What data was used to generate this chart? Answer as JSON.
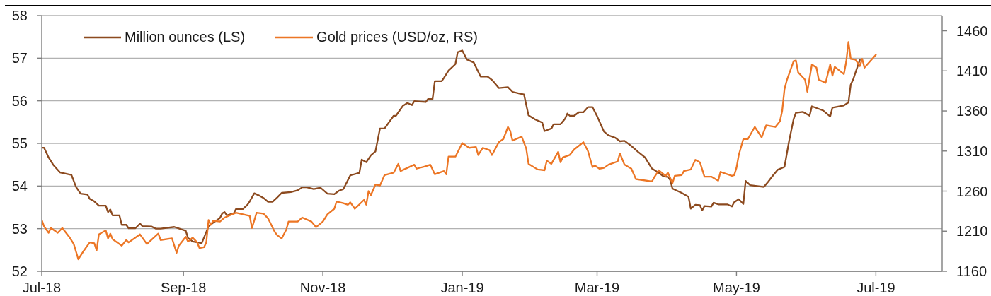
{
  "chart_data": {
    "type": "line",
    "series": [
      {
        "name": "Million ounces (LS)",
        "color": "#8c4a1f",
        "x": [
          "2018-07-01",
          "2018-07-02",
          "2018-07-04",
          "2018-07-06",
          "2018-07-09",
          "2018-07-14",
          "2018-07-16",
          "2018-07-18",
          "2018-07-21",
          "2018-07-22",
          "2018-07-24",
          "2018-07-26",
          "2018-07-29",
          "2018-07-30",
          "2018-07-31",
          "2018-08-01",
          "2018-08-04",
          "2018-08-05",
          "2018-08-07",
          "2018-08-08",
          "2018-08-11",
          "2018-08-13",
          "2018-08-14",
          "2018-08-18",
          "2018-08-20",
          "2018-08-22",
          "2018-08-28",
          "2018-09-02",
          "2018-09-03",
          "2018-09-05",
          "2018-09-09",
          "2018-09-11",
          "2018-09-12",
          "2018-09-14",
          "2018-09-17",
          "2018-09-18",
          "2018-09-19",
          "2018-09-20",
          "2018-09-23",
          "2018-09-24",
          "2018-09-27",
          "2018-09-29",
          "2018-09-30",
          "2018-10-02",
          "2018-10-04",
          "2018-10-06",
          "2018-10-08",
          "2018-10-10",
          "2018-10-12",
          "2018-10-14",
          "2018-10-18",
          "2018-10-21",
          "2018-10-23",
          "2018-10-25",
          "2018-10-28",
          "2018-10-31",
          "2018-11-03",
          "2018-11-06",
          "2018-11-08",
          "2018-11-10",
          "2018-11-13",
          "2018-11-17",
          "2018-11-18",
          "2018-11-20",
          "2018-11-22",
          "2018-11-24",
          "2018-11-26",
          "2018-11-28",
          "2018-12-02",
          "2018-12-03",
          "2018-12-06",
          "2018-12-08",
          "2018-12-10",
          "2018-12-11",
          "2018-12-16",
          "2018-12-17",
          "2018-12-19",
          "2018-12-20",
          "2018-12-23",
          "2018-12-24",
          "2018-12-26",
          "2018-12-29",
          "2018-12-30",
          "2019-01-01",
          "2019-01-03",
          "2019-01-06",
          "2019-01-07",
          "2019-01-09",
          "2019-01-12",
          "2019-01-14",
          "2019-01-17",
          "2019-01-21",
          "2019-01-23",
          "2019-01-26",
          "2019-01-28",
          "2019-01-30",
          "2019-02-02",
          "2019-02-05",
          "2019-02-06",
          "2019-02-09",
          "2019-02-10",
          "2019-02-13",
          "2019-02-15",
          "2019-02-16",
          "2019-02-17",
          "2019-02-19",
          "2019-02-21",
          "2019-02-23",
          "2019-02-25",
          "2019-02-27",
          "2019-03-01",
          "2019-03-04",
          "2019-03-06",
          "2019-03-09",
          "2019-03-11",
          "2019-03-13",
          "2019-03-16",
          "2019-03-19",
          "2019-03-22",
          "2019-03-25",
          "2019-03-28",
          "2019-03-30",
          "2019-04-01",
          "2019-04-02",
          "2019-04-03",
          "2019-04-07",
          "2019-04-10",
          "2019-04-11",
          "2019-04-13",
          "2019-04-15",
          "2019-04-16",
          "2019-04-17",
          "2019-04-20",
          "2019-04-21",
          "2019-04-23",
          "2019-04-27",
          "2019-04-29",
          "2019-04-30",
          "2019-05-02",
          "2019-05-04",
          "2019-05-05",
          "2019-05-07",
          "2019-05-13",
          "2019-05-15",
          "2019-05-17",
          "2019-05-19",
          "2019-05-22",
          "2019-05-24",
          "2019-05-26",
          "2019-05-27",
          "2019-05-30",
          "2019-06-02",
          "2019-06-03",
          "2019-06-08",
          "2019-06-11",
          "2019-06-12",
          "2019-06-17",
          "2019-06-19",
          "2019-06-20",
          "2019-06-21",
          "2019-06-22",
          "2019-06-24"
        ],
        "values": [
          54.9,
          54.9,
          54.67,
          54.5,
          54.32,
          54.26,
          53.98,
          53.82,
          53.8,
          53.7,
          53.64,
          53.54,
          53.54,
          53.39,
          53.45,
          53.31,
          53.31,
          53.09,
          53.09,
          53.01,
          53.01,
          53.12,
          53.06,
          53.05,
          53.0,
          53.0,
          53.04,
          52.95,
          52.78,
          52.7,
          52.66,
          52.92,
          53.06,
          53.14,
          53.25,
          53.36,
          53.39,
          53.31,
          53.36,
          53.46,
          53.46,
          53.56,
          53.64,
          53.83,
          53.78,
          53.72,
          53.63,
          53.63,
          53.73,
          53.84,
          53.86,
          53.9,
          53.97,
          53.97,
          53.93,
          53.96,
          53.82,
          53.81,
          53.89,
          53.93,
          54.25,
          54.31,
          54.62,
          54.56,
          54.72,
          54.81,
          55.35,
          55.35,
          55.65,
          55.65,
          55.88,
          55.95,
          55.9,
          55.99,
          55.97,
          56.04,
          56.04,
          56.46,
          56.46,
          56.54,
          56.71,
          56.86,
          57.14,
          57.18,
          56.97,
          56.9,
          56.79,
          56.57,
          56.57,
          56.49,
          56.3,
          56.32,
          56.21,
          56.17,
          56.15,
          55.66,
          55.56,
          55.49,
          55.29,
          55.35,
          55.45,
          55.45,
          55.58,
          55.7,
          55.65,
          55.65,
          55.73,
          55.73,
          55.85,
          55.85,
          55.64,
          55.28,
          55.19,
          55.13,
          55.05,
          55.06,
          54.94,
          54.8,
          54.67,
          54.41,
          54.31,
          54.23,
          54.21,
          54.14,
          53.94,
          53.84,
          53.75,
          53.47,
          53.56,
          53.55,
          53.43,
          53.53,
          53.52,
          53.61,
          53.57,
          53.57,
          53.52,
          53.62,
          53.69,
          53.58,
          54.12,
          54.02,
          53.98,
          54.11,
          54.25,
          54.38,
          54.45,
          55.05,
          55.57,
          55.72,
          55.74,
          55.65,
          55.87,
          55.77,
          55.63,
          55.84,
          55.89,
          55.96,
          56.38,
          56.49,
          56.65,
          56.96
        ]
      },
      {
        "name": "Gold prices (USD/oz, RS)",
        "color": "#ec7625",
        "axis": "y2",
        "x": [
          "2018-07-01",
          "2018-07-02",
          "2018-07-04",
          "2018-07-05",
          "2018-07-08",
          "2018-07-10",
          "2018-07-13",
          "2018-07-15",
          "2018-07-17",
          "2018-07-19",
          "2018-07-22",
          "2018-07-24",
          "2018-07-25",
          "2018-07-26",
          "2018-07-29",
          "2018-07-30",
          "2018-07-31",
          "2018-08-01",
          "2018-08-05",
          "2018-08-07",
          "2018-08-08",
          "2018-08-13",
          "2018-08-16",
          "2018-08-21",
          "2018-08-22",
          "2018-08-27",
          "2018-08-29",
          "2018-08-30",
          "2018-09-02",
          "2018-09-03",
          "2018-09-05",
          "2018-09-07",
          "2018-09-08",
          "2018-09-10",
          "2018-09-11",
          "2018-09-12",
          "2018-09-13",
          "2018-09-14",
          "2018-09-17",
          "2018-09-19",
          "2018-09-24",
          "2018-09-30",
          "2018-10-01",
          "2018-10-03",
          "2018-10-06",
          "2018-10-08",
          "2018-10-11",
          "2018-10-12",
          "2018-10-14",
          "2018-10-16",
          "2018-10-17",
          "2018-10-21",
          "2018-10-23",
          "2018-10-27",
          "2018-10-29",
          "2018-11-01",
          "2018-11-03",
          "2018-11-06",
          "2018-11-07",
          "2018-11-10",
          "2018-11-12",
          "2018-11-13",
          "2018-11-15",
          "2018-11-19",
          "2018-11-20",
          "2018-11-21",
          "2018-11-22",
          "2018-11-24",
          "2018-11-26",
          "2018-11-28",
          "2018-12-02",
          "2018-12-04",
          "2018-12-05",
          "2018-12-08",
          "2018-12-11",
          "2018-12-12",
          "2018-12-16",
          "2018-12-18",
          "2018-12-20",
          "2018-12-24",
          "2018-12-25",
          "2018-12-26",
          "2018-12-29",
          "2019-01-01",
          "2019-01-04",
          "2019-01-07",
          "2019-01-08",
          "2019-01-10",
          "2019-01-13",
          "2019-01-14",
          "2019-01-17",
          "2019-01-19",
          "2019-01-21",
          "2019-01-22",
          "2019-01-23",
          "2019-01-27",
          "2019-01-29",
          "2019-01-30",
          "2019-02-03",
          "2019-02-06",
          "2019-02-07",
          "2019-02-09",
          "2019-02-12",
          "2019-02-13",
          "2019-02-14",
          "2019-02-17",
          "2019-02-19",
          "2019-02-23",
          "2019-02-25",
          "2019-02-27",
          "2019-02-28",
          "2019-03-02",
          "2019-03-04",
          "2019-03-06",
          "2019-03-10",
          "2019-03-11",
          "2019-03-13",
          "2019-03-16",
          "2019-03-18",
          "2019-03-25",
          "2019-03-26",
          "2019-03-28",
          "2019-03-31",
          "2019-04-01",
          "2019-04-03",
          "2019-04-04",
          "2019-04-07",
          "2019-04-08",
          "2019-04-11",
          "2019-04-13",
          "2019-04-15",
          "2019-04-17",
          "2019-04-20",
          "2019-04-23",
          "2019-04-24",
          "2019-04-29",
          "2019-04-30",
          "2019-05-01",
          "2019-05-02",
          "2019-05-04",
          "2019-05-06",
          "2019-05-09",
          "2019-05-12",
          "2019-05-14",
          "2019-05-18",
          "2019-05-20",
          "2019-05-21",
          "2019-05-22",
          "2019-05-23",
          "2019-05-26",
          "2019-05-27",
          "2019-05-28",
          "2019-05-31",
          "2019-06-01",
          "2019-06-03",
          "2019-06-05",
          "2019-06-06",
          "2019-06-09",
          "2019-06-11",
          "2019-06-12",
          "2019-06-13",
          "2019-06-17",
          "2019-06-18",
          "2019-06-19",
          "2019-06-20",
          "2019-06-22",
          "2019-06-24",
          "2019-06-25",
          "2019-06-26",
          "2019-07-01"
        ],
        "values": [
          1224,
          1216,
          1208,
          1214,
          1208,
          1214,
          1203,
          1194,
          1175,
          1184,
          1196,
          1195,
          1186,
          1206,
          1211,
          1201,
          1207,
          1200,
          1192,
          1199,
          1196,
          1206,
          1194,
          1207,
          1199,
          1201,
          1183,
          1192,
          1203,
          1197,
          1202,
          1196,
          1189,
          1190,
          1196,
          1224,
          1218,
          1223,
          1222,
          1227,
          1233,
          1229,
          1214,
          1233,
          1232,
          1226,
          1209,
          1205,
          1201,
          1212,
          1222,
          1222,
          1227,
          1222,
          1215,
          1222,
          1231,
          1238,
          1247,
          1245,
          1243,
          1246,
          1238,
          1249,
          1243,
          1260,
          1255,
          1268,
          1267,
          1280,
          1283,
          1294,
          1285,
          1289,
          1293,
          1288,
          1291,
          1293,
          1281,
          1285,
          1281,
          1303,
          1303,
          1320,
          1314,
          1315,
          1305,
          1314,
          1311,
          1305,
          1321,
          1325,
          1340,
          1335,
          1323,
          1328,
          1313,
          1294,
          1287,
          1286,
          1298,
          1294,
          1309,
          1296,
          1302,
          1305,
          1312,
          1321,
          1310,
          1290,
          1292,
          1288,
          1289,
          1293,
          1297,
          1307,
          1293,
          1288,
          1275,
          1272,
          1277,
          1286,
          1279,
          1283,
          1270,
          1279,
          1280,
          1285,
          1287,
          1299,
          1296,
          1278,
          1278,
          1273,
          1284,
          1279,
          1280,
          1289,
          1305,
          1325,
          1325,
          1340,
          1327,
          1342,
          1340,
          1347,
          1360,
          1387,
          1398,
          1422,
          1423,
          1408,
          1399,
          1384,
          1418,
          1414,
          1399,
          1395,
          1418,
          1404,
          1415,
          1406,
          1421,
          1446,
          1425,
          1424,
          1416,
          1425,
          1414,
          1430
        ]
      }
    ],
    "xlim": [
      "2018-07-01",
      "2019-07-30"
    ],
    "xticks": [
      {
        "value": "2018-07-01",
        "label": "Jul-18"
      },
      {
        "value": "2018-09-01",
        "label": "Sep-18"
      },
      {
        "value": "2018-11-01",
        "label": "Nov-18"
      },
      {
        "value": "2019-01-01",
        "label": "Jan-19"
      },
      {
        "value": "2019-03-01",
        "label": "Mar-19"
      },
      {
        "value": "2019-05-01",
        "label": "May-19"
      },
      {
        "value": "2019-07-01",
        "label": "Jul-19"
      }
    ],
    "ylim": [
      52,
      58
    ],
    "yticks": [
      52,
      53,
      54,
      55,
      56,
      57,
      58
    ],
    "y2lim": [
      1160,
      1479
    ],
    "y2ticks": [
      1160,
      1210,
      1260,
      1310,
      1360,
      1410,
      1460
    ],
    "grid": "y",
    "legend": "top left",
    "marker": "none",
    "line_style": "solid"
  }
}
